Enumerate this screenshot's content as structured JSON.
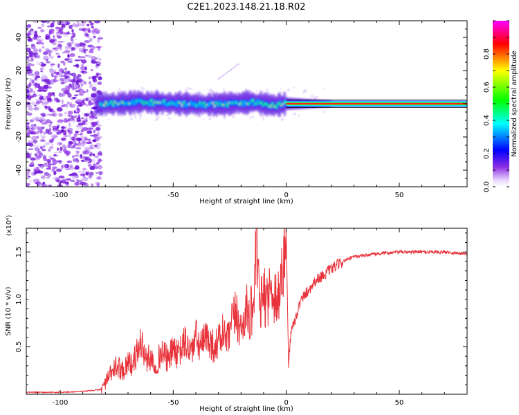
{
  "title": "C2E1.2023.148.21.18.R02",
  "chart_data": [
    {
      "type": "heatmap",
      "xlabel": "Height of straight line (km)",
      "ylabel": "Frequency (Hz)",
      "xlim": [
        -115,
        80
      ],
      "ylim": [
        -50,
        50
      ],
      "x_ticks": [
        -100,
        -50,
        0,
        50
      ],
      "y_ticks": [
        -40,
        -20,
        0,
        20,
        40
      ],
      "colorbar": {
        "label": "Normalized spectral amplitude",
        "range": [
          0,
          1
        ],
        "ticks": [
          0.0,
          0.2,
          0.4,
          0.6,
          0.8
        ],
        "colors": [
          "#ffffff",
          "#8a2be2",
          "#0000ff",
          "#00ffff",
          "#00ff00",
          "#ffff00",
          "#ff0000",
          "#ff00ff"
        ]
      },
      "ridge": {
        "x": [
          -82,
          -75,
          -65,
          -55,
          -45,
          -35,
          -25,
          -15,
          -5,
          0,
          10,
          20,
          40,
          60,
          80
        ],
        "y": [
          0,
          0,
          1,
          0.5,
          0,
          -0.5,
          0,
          1,
          -1,
          0,
          0,
          0,
          0,
          0,
          0
        ]
      },
      "grid": false
    },
    {
      "type": "line",
      "xlabel": "Height of straight line (km)",
      "ylabel": "SNR (10 * v/v)",
      "y_multiplier": "(x10⁴)",
      "xlim": [
        -115,
        80
      ],
      "ylim": [
        0,
        1.75
      ],
      "x_ticks": [
        -100,
        -50,
        0,
        50
      ],
      "y_ticks": [
        0.5,
        1.0,
        1.5
      ],
      "series": [
        {
          "color": "#e8323a",
          "x": [
            -115,
            -100,
            -90,
            -82,
            -80,
            -78,
            -75,
            -72,
            -70,
            -68,
            -66,
            -64,
            -62,
            -60,
            -58,
            -55,
            -52,
            -50,
            -48,
            -45,
            -42,
            -40,
            -38,
            -35,
            -32,
            -30,
            -28,
            -26,
            -24,
            -22,
            -20,
            -18,
            -16,
            -14,
            -13,
            -12,
            -10,
            -8,
            -6,
            -4,
            -2,
            -1,
            0,
            1,
            2,
            4,
            6,
            8,
            10,
            13,
            16,
            20,
            25,
            30,
            40,
            50,
            60,
            70,
            80
          ],
          "y": [
            0.02,
            0.02,
            0.03,
            0.05,
            0.12,
            0.2,
            0.3,
            0.25,
            0.35,
            0.3,
            0.45,
            0.55,
            0.35,
            0.4,
            0.3,
            0.45,
            0.35,
            0.5,
            0.4,
            0.55,
            0.45,
            0.6,
            0.5,
            0.6,
            0.5,
            0.55,
            0.65,
            0.55,
            0.75,
            0.85,
            0.65,
            0.9,
            0.8,
            1.1,
            1.65,
            0.95,
            1.0,
            1.05,
            1.1,
            1.0,
            1.2,
            1.45,
            1.7,
            0.3,
            0.65,
            0.8,
            0.95,
            1.05,
            1.1,
            1.2,
            1.25,
            1.32,
            1.4,
            1.45,
            1.48,
            1.5,
            1.5,
            1.5,
            1.48
          ]
        }
      ],
      "grid": false
    }
  ]
}
